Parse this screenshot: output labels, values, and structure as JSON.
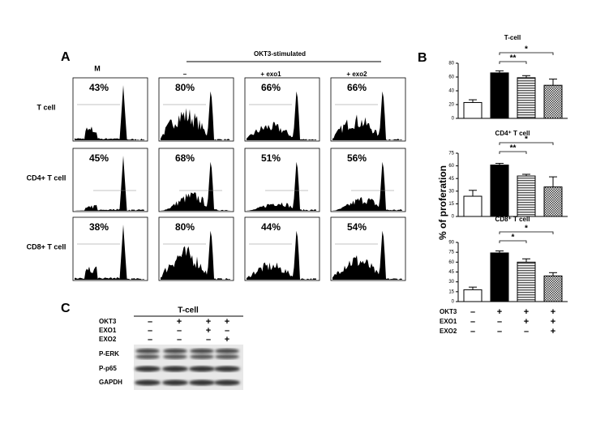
{
  "panel_a": {
    "label": "A",
    "group_label": "OKT3-stimulated",
    "columns": [
      "M",
      "–",
      "+ exo1",
      "+ exo2"
    ],
    "rows": [
      {
        "label": "T cell",
        "values": [
          "43%",
          "80%",
          "66%",
          "66%"
        ]
      },
      {
        "label": "CD4+ T cell",
        "values": [
          "45%",
          "68%",
          "51%",
          "56%"
        ]
      },
      {
        "label": "CD8+ T cell",
        "values": [
          "38%",
          "80%",
          "44%",
          "54%"
        ]
      }
    ]
  },
  "panel_b": {
    "label": "B",
    "y_label": "% of proferation",
    "treatments": [
      {
        "label": "OKT3",
        "signs": [
          "–",
          "+",
          "+",
          "+"
        ]
      },
      {
        "label": "EXO1",
        "signs": [
          "–",
          "–",
          "+",
          "+"
        ]
      },
      {
        "label": "EXO2",
        "signs": [
          "–",
          "–",
          "–",
          "+"
        ]
      }
    ]
  },
  "chart_data": [
    {
      "type": "bar",
      "title": "T-cell",
      "categories": [
        null,
        null,
        null,
        null
      ],
      "values": [
        23,
        66,
        59,
        48
      ],
      "errors": [
        4,
        3,
        3,
        9
      ],
      "fills": [
        "white",
        "black",
        "stripes",
        "hatch"
      ],
      "ylim": [
        0,
        80
      ],
      "yticks": [
        0,
        20,
        40,
        60,
        80
      ],
      "significance": [
        {
          "label": "**",
          "between": [
            1,
            2
          ]
        },
        {
          "label": "*",
          "between": [
            1,
            3
          ]
        }
      ]
    },
    {
      "type": "bar",
      "title": "CD4⁺ T cell",
      "categories": [
        null,
        null,
        null,
        null
      ],
      "values": [
        24,
        61,
        48,
        35
      ],
      "errors": [
        7,
        2,
        2,
        12
      ],
      "fills": [
        "white",
        "black",
        "stripes",
        "hatch"
      ],
      "ylim": [
        0,
        75
      ],
      "yticks": [
        0,
        15,
        30,
        45,
        60,
        75
      ],
      "significance": [
        {
          "label": "**",
          "between": [
            1,
            2
          ]
        },
        {
          "label": "*",
          "between": [
            1,
            3
          ]
        }
      ]
    },
    {
      "type": "bar",
      "title": "CD8⁺ T cell",
      "categories": [
        null,
        null,
        null,
        null
      ],
      "values": [
        18,
        74,
        60,
        39
      ],
      "errors": [
        4,
        3,
        5,
        5
      ],
      "fills": [
        "white",
        "black",
        "stripes",
        "hatch"
      ],
      "ylim": [
        0,
        90
      ],
      "yticks": [
        0,
        15,
        30,
        45,
        60,
        75,
        90
      ],
      "significance": [
        {
          "label": "*",
          "between": [
            1,
            2
          ]
        },
        {
          "label": "*",
          "between": [
            1,
            3
          ]
        }
      ]
    }
  ],
  "panel_c": {
    "label": "C",
    "title": "T-cell",
    "treatments": [
      {
        "label": "OKT3",
        "signs": [
          "–",
          "+",
          "+",
          "+"
        ]
      },
      {
        "label": "EXO1",
        "signs": [
          "–",
          "–",
          "+",
          "–"
        ]
      },
      {
        "label": "EXO2",
        "signs": [
          "–",
          "–",
          "–",
          "+"
        ]
      }
    ],
    "blots": [
      "P-ERK",
      "P-p65",
      "GAPDH"
    ]
  }
}
